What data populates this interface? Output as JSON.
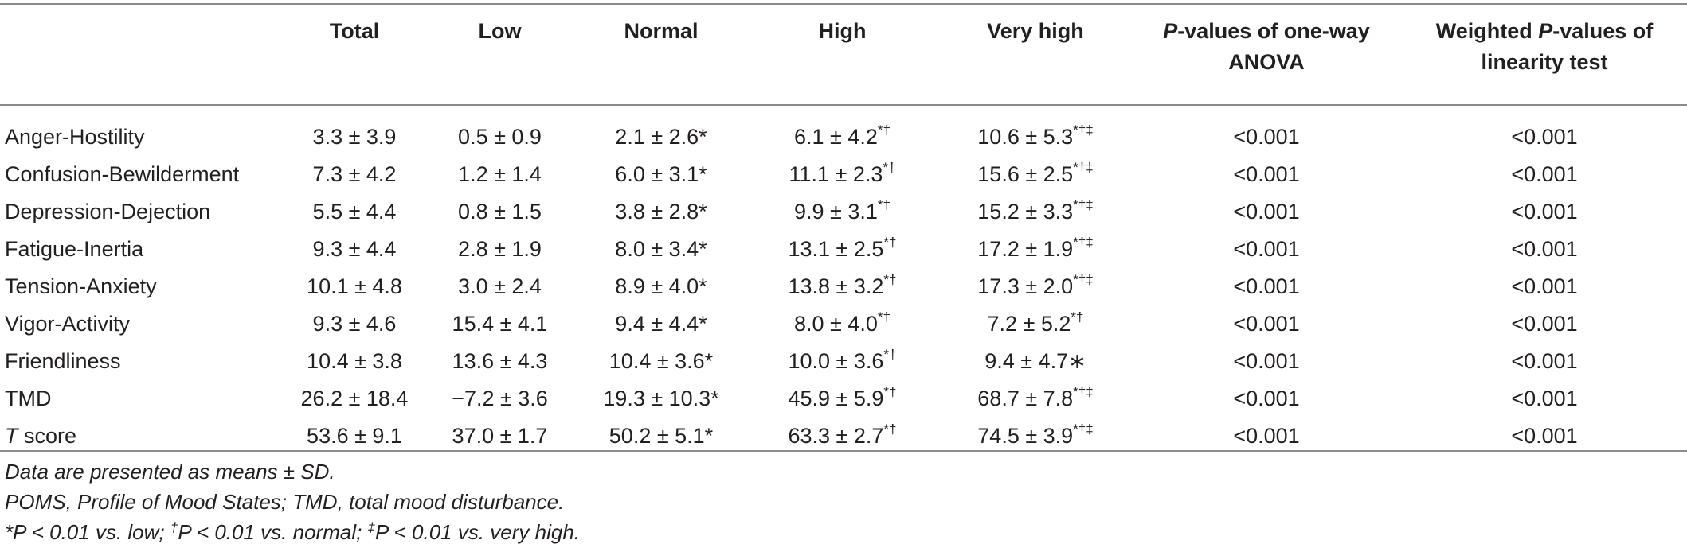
{
  "table": {
    "headers": {
      "stub": "",
      "total": "Total",
      "low": "Low",
      "normal": "Normal",
      "high": "High",
      "very_high": "Very high",
      "anova_italic": "P",
      "anova_rest": "-values of one-way ANOVA",
      "weighted_pre": "Weighted ",
      "weighted_italic": "P",
      "weighted_rest": "-values of linearity test"
    },
    "rows": [
      {
        "label": "Anger-Hostility",
        "total": "3.3 ± 3.9",
        "low": "0.5 ± 0.9",
        "normal": "2.1 ± 2.6*",
        "high": "6.1 ± 4.2",
        "high_sup": "*†",
        "very_high": "10.6 ± 5.3",
        "very_high_sup": "*†‡",
        "anova": "<0.001",
        "weighted": "<0.001"
      },
      {
        "label": "Confusion-Bewilderment",
        "total": "7.3 ± 4.2",
        "low": "1.2 ± 1.4",
        "normal": "6.0 ± 3.1*",
        "high": "11.1 ± 2.3",
        "high_sup": "*†",
        "very_high": "15.6 ± 2.5",
        "very_high_sup": "*†‡",
        "anova": "<0.001",
        "weighted": "<0.001"
      },
      {
        "label": "Depression-Dejection",
        "total": "5.5 ± 4.4",
        "low": "0.8 ± 1.5",
        "normal": "3.8 ± 2.8*",
        "high": "9.9 ± 3.1",
        "high_sup": "*†",
        "very_high": "15.2 ± 3.3",
        "very_high_sup": "*†‡",
        "anova": "<0.001",
        "weighted": "<0.001"
      },
      {
        "label": "Fatigue-Inertia",
        "total": "9.3 ± 4.4",
        "low": "2.8 ± 1.9",
        "normal": "8.0 ± 3.4*",
        "high": "13.1 ± 2.5",
        "high_sup": "*†",
        "very_high": "17.2 ± 1.9",
        "very_high_sup": "*†‡",
        "anova": "<0.001",
        "weighted": "<0.001"
      },
      {
        "label": "Tension-Anxiety",
        "total": "10.1 ± 4.8",
        "low": "3.0 ± 2.4",
        "normal": "8.9 ± 4.0*",
        "high": "13.8 ± 3.2",
        "high_sup": "*†",
        "very_high": "17.3 ± 2.0",
        "very_high_sup": "*†‡",
        "anova": "<0.001",
        "weighted": "<0.001"
      },
      {
        "label": "Vigor-Activity",
        "total": "9.3 ± 4.6",
        "low": "15.4 ± 4.1",
        "normal": "9.4 ± 4.4*",
        "high": "8.0 ± 4.0",
        "high_sup": "*†",
        "very_high": "7.2 ± 5.2",
        "very_high_sup": "*†",
        "anova": "<0.001",
        "weighted": "<0.001"
      },
      {
        "label": "Friendliness",
        "total": "10.4 ± 3.8",
        "low": "13.6 ± 4.3",
        "normal": "10.4 ± 3.6*",
        "high": "10.0 ± 3.6",
        "high_sup": "*†",
        "very_high": "9.4 ± 4.7∗",
        "very_high_sup": "",
        "anova": "<0.001",
        "weighted": "<0.001"
      },
      {
        "label": "TMD",
        "total": "26.2 ± 18.4",
        "low": "−7.2 ± 3.6",
        "normal": "19.3 ± 10.3*",
        "high": "45.9 ± 5.9",
        "high_sup": "*†",
        "very_high": "68.7 ± 7.8",
        "very_high_sup": "*†‡",
        "anova": "<0.001",
        "weighted": "<0.001"
      },
      {
        "label_italic": "T",
        "label": " score",
        "total": "53.6 ± 9.1",
        "low": "37.0 ± 1.7",
        "normal": "50.2 ± 5.1*",
        "high": "63.3 ± 2.7",
        "high_sup": "*†",
        "very_high": "74.5 ± 3.9",
        "very_high_sup": "*†‡",
        "anova": "<0.001",
        "weighted": "<0.001"
      }
    ]
  },
  "notes": {
    "line1": "Data are presented as means ± SD.",
    "line2": "POMS, Profile of Mood States; TMD, total mood disturbance.",
    "line3_a": "*P < 0.01 vs. low; ",
    "line3_b_sup": "†",
    "line3_b": "P < 0.01 vs. normal; ",
    "line3_c_sup": "‡",
    "line3_c": "P < 0.01 vs. very high."
  }
}
